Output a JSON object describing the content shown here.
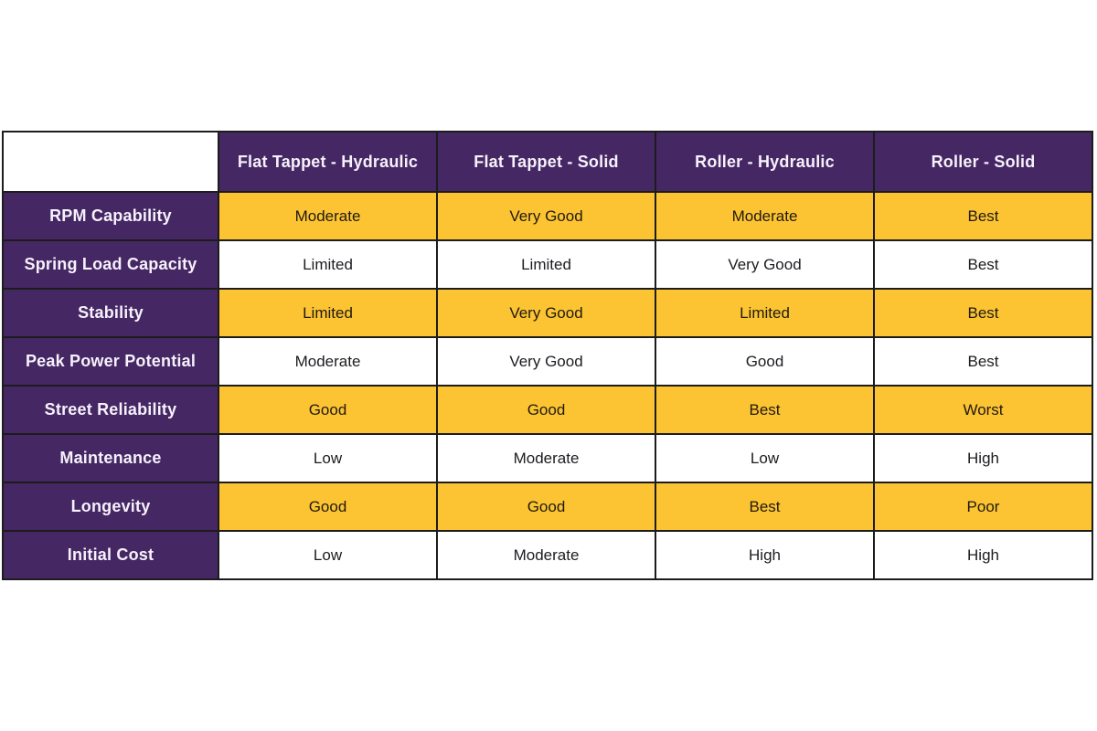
{
  "colors": {
    "header_purple": "#452763",
    "stripe_yellow": "#fcc433",
    "stripe_white": "#ffffff",
    "border_black": "#1c1c1c",
    "header_text": "#f6f1fb",
    "value_text": "#1d1b20"
  },
  "table": {
    "corner_label": "",
    "columns": [
      "Flat Tappet - Hydraulic",
      "Flat Tappet - Solid",
      "Roller - Hydraulic",
      "Roller - Solid"
    ],
    "rows": [
      {
        "label": "RPM Capability",
        "cells": [
          "Moderate",
          "Very Good",
          "Moderate",
          "Best"
        ]
      },
      {
        "label": "Spring Load Capacity",
        "cells": [
          "Limited",
          "Limited",
          "Very Good",
          "Best"
        ]
      },
      {
        "label": "Stability",
        "cells": [
          "Limited",
          "Very Good",
          "Limited",
          "Best"
        ]
      },
      {
        "label": "Peak Power Potential",
        "cells": [
          "Moderate",
          "Very Good",
          "Good",
          "Best"
        ]
      },
      {
        "label": "Street Reliability",
        "cells": [
          "Good",
          "Good",
          "Best",
          "Worst"
        ]
      },
      {
        "label": "Maintenance",
        "cells": [
          "Low",
          "Moderate",
          "Low",
          "High"
        ]
      },
      {
        "label": "Longevity",
        "cells": [
          "Good",
          "Good",
          "Best",
          "Poor"
        ]
      },
      {
        "label": "Initial Cost",
        "cells": [
          "Low",
          "Moderate",
          "High",
          "High"
        ]
      }
    ]
  }
}
